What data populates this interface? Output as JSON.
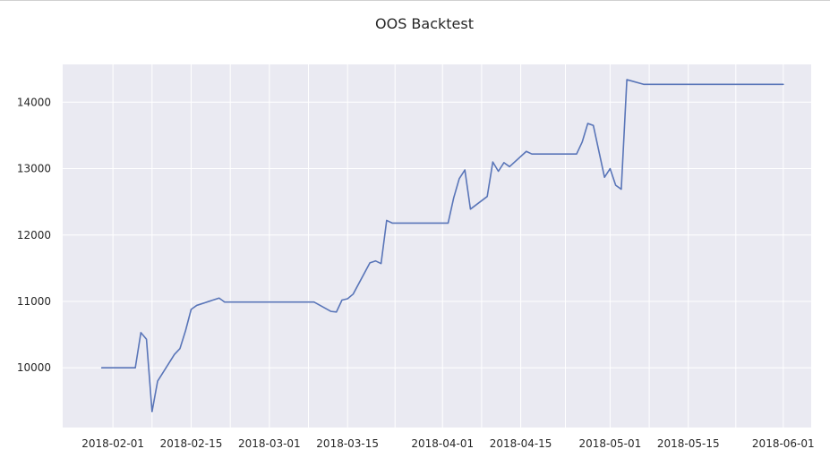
{
  "chart_data": {
    "type": "line",
    "title": "OOS Backtest",
    "xlabel": "",
    "ylabel": "",
    "x_axis_type": "date",
    "xlim": [
      "2018-01-23",
      "2018-06-06"
    ],
    "ylim": [
      9100,
      14570
    ],
    "grid": true,
    "legend": "none",
    "x_ticks": [
      "2018-02-01",
      "2018-02-15",
      "2018-03-01",
      "2018-03-15",
      "2018-04-01",
      "2018-04-15",
      "2018-05-01",
      "2018-05-15",
      "2018-06-01"
    ],
    "y_ticks": [
      10000,
      11000,
      12000,
      13000,
      14000
    ],
    "colors": {
      "plot_background": "#eaeaf2",
      "grid": "#ffffff",
      "line": "#5975b8",
      "text": "#262626"
    },
    "series": [
      {
        "x": [
          "2018-01-30",
          "2018-02-05",
          "2018-02-06",
          "2018-02-07",
          "2018-02-08",
          "2018-02-09",
          "2018-02-12",
          "2018-02-13",
          "2018-02-14",
          "2018-02-15",
          "2018-02-16",
          "2018-02-20",
          "2018-02-21",
          "2018-03-09",
          "2018-03-12",
          "2018-03-13",
          "2018-03-14",
          "2018-03-15",
          "2018-03-16",
          "2018-03-19",
          "2018-03-20",
          "2018-03-21",
          "2018-03-22",
          "2018-03-23",
          "2018-04-02",
          "2018-04-03",
          "2018-04-04",
          "2018-04-05",
          "2018-04-06",
          "2018-04-09",
          "2018-04-10",
          "2018-04-11",
          "2018-04-12",
          "2018-04-13",
          "2018-04-16",
          "2018-04-17",
          "2018-04-25",
          "2018-04-26",
          "2018-04-27",
          "2018-04-28",
          "2018-04-30",
          "2018-05-01",
          "2018-05-02",
          "2018-05-03",
          "2018-05-04",
          "2018-05-07",
          "2018-06-01"
        ],
        "y": [
          10000,
          10000,
          10530,
          10430,
          9340,
          9800,
          10200,
          10290,
          10560,
          10880,
          10940,
          11050,
          10990,
          10990,
          10850,
          10840,
          11020,
          11040,
          11110,
          11580,
          11610,
          11570,
          12220,
          12180,
          12180,
          12560,
          12850,
          12980,
          12390,
          12580,
          13100,
          12960,
          13090,
          13030,
          13260,
          13220,
          13220,
          13400,
          13680,
          13650,
          12870,
          13000,
          12750,
          12690,
          14340,
          14270,
          14270
        ]
      }
    ]
  }
}
